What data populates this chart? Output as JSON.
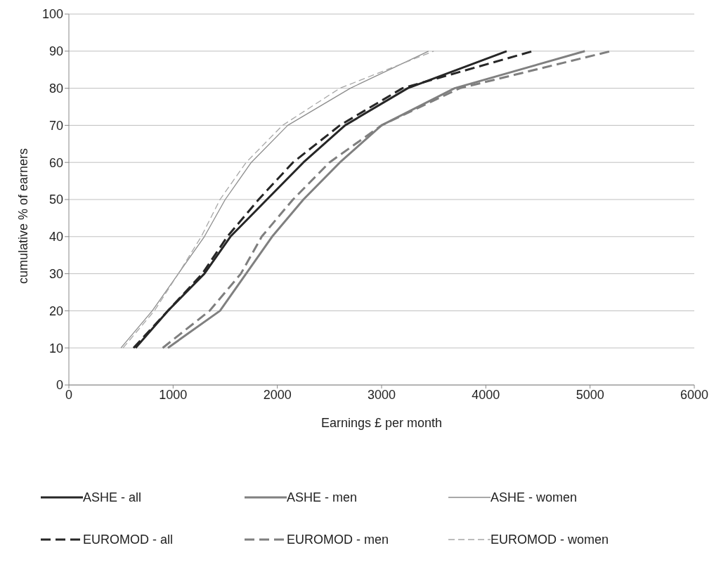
{
  "chart_data": {
    "type": "line",
    "xlabel": "Earnings £ per month",
    "ylabel": "cumulative % of earners",
    "xlim": [
      0,
      6000
    ],
    "xticks": [
      0,
      1000,
      2000,
      3000,
      4000,
      5000,
      6000
    ],
    "ylim": [
      0,
      100
    ],
    "yticks": [
      0,
      10,
      20,
      30,
      40,
      50,
      60,
      70,
      80,
      90,
      100
    ],
    "grid": "y",
    "legend": "bottom",
    "marker": "none",
    "series": [
      {
        "name": "ASHE - all",
        "color": "#262626",
        "line_style": "solid",
        "x": [
          640,
          950,
          1300,
          1550,
          1900,
          2250,
          2650,
          3250,
          4200
        ],
        "values": [
          10,
          20,
          30,
          40,
          50,
          60,
          70,
          80,
          90
        ]
      },
      {
        "name": "ASHE - men",
        "color": "#808080",
        "line_style": "solid",
        "x": [
          950,
          1450,
          1700,
          1950,
          2250,
          2600,
          3000,
          3700,
          4950
        ],
        "values": [
          10,
          20,
          30,
          40,
          50,
          60,
          70,
          80,
          90
        ]
      },
      {
        "name": "ASHE - women",
        "color": "#8c8c8c",
        "line_style": "solid",
        "x": [
          500,
          800,
          1050,
          1300,
          1500,
          1750,
          2100,
          2700,
          3450
        ],
        "values": [
          10,
          20,
          30,
          40,
          50,
          60,
          70,
          80,
          90
        ]
      },
      {
        "name": "EUROMOD - all",
        "color": "#262626",
        "line_style": "dashed",
        "x": [
          620,
          950,
          1280,
          1520,
          1820,
          2150,
          2600,
          3200,
          4450
        ],
        "values": [
          10,
          20,
          30,
          40,
          50,
          60,
          70,
          80,
          90
        ]
      },
      {
        "name": "EUROMOD - men",
        "color": "#7f7f7f",
        "line_style": "dashed",
        "x": [
          900,
          1350,
          1650,
          1850,
          2150,
          2500,
          3000,
          3750,
          5200
        ],
        "values": [
          10,
          20,
          30,
          40,
          50,
          60,
          70,
          80,
          90
        ]
      },
      {
        "name": "EUROMOD - women",
        "color": "#a6a6a6",
        "line_style": "dashed",
        "x": [
          520,
          820,
          1050,
          1270,
          1450,
          1700,
          2050,
          2600,
          3500
        ],
        "values": [
          10,
          20,
          30,
          40,
          50,
          60,
          70,
          80,
          90
        ]
      }
    ]
  }
}
